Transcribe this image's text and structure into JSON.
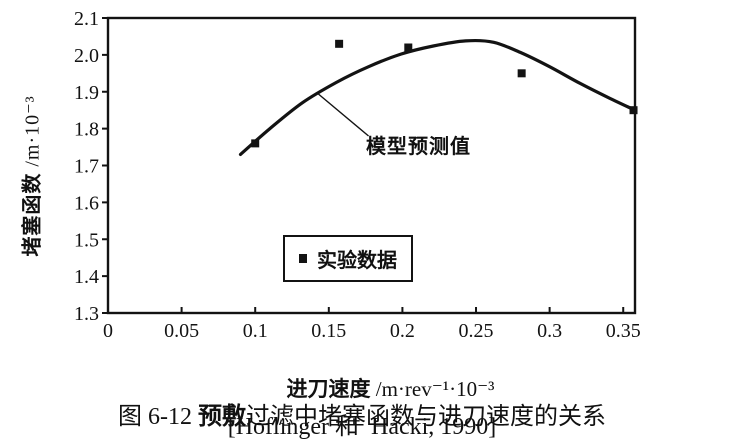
{
  "chart_data": {
    "type": "scatter",
    "title": "",
    "xlabel": "进刀速度 /m·rev⁻¹·10⁻³",
    "xlabel_cjk": "进刀速度",
    "xlabel_unit": " /m·rev⁻¹·10⁻³",
    "ylabel": "堵塞函数 /m·10⁻³",
    "ylabel_cjk": "堵塞函数",
    "ylabel_unit": " /m·10⁻³",
    "xlim": [
      0,
      0.358
    ],
    "ylim": [
      1.3,
      2.1
    ],
    "x_ticks": [
      0,
      0.05,
      0.1,
      0.15,
      0.2,
      0.25,
      0.3,
      0.35
    ],
    "x_tick_labels": [
      "0",
      "0.05",
      "0.1",
      "0.15",
      "0.2",
      "0.25",
      "0.3",
      "0.35"
    ],
    "y_ticks": [
      1.3,
      1.4,
      1.5,
      1.6,
      1.7,
      1.8,
      1.9,
      2.0,
      2.1
    ],
    "y_tick_labels": [
      "1.3",
      "1.4",
      "1.5",
      "1.6",
      "1.7",
      "1.8",
      "1.9",
      "2.0",
      "2.1"
    ],
    "grid": false,
    "legend": {
      "label": "实验数据",
      "marker": "filled-square",
      "boxed": true,
      "position": "inside-lower-center"
    },
    "annotation": {
      "label": "模型预测值",
      "points_to": "model-curve",
      "line_from_xy": [
        0.177,
        1.78
      ],
      "line_to_xy": [
        0.142,
        1.897
      ]
    },
    "series": [
      {
        "name": "实验数据",
        "type": "scatter",
        "marker": "filled-square",
        "color": "#131313",
        "points": [
          [
            0.1,
            1.76
          ],
          [
            0.157,
            2.03
          ],
          [
            0.204,
            2.02
          ],
          [
            0.281,
            1.95
          ],
          [
            0.357,
            1.85
          ]
        ]
      },
      {
        "name": "模型预测值",
        "type": "line",
        "color": "#131313",
        "points": [
          [
            0.09,
            1.73
          ],
          [
            0.11,
            1.8
          ],
          [
            0.132,
            1.87
          ],
          [
            0.155,
            1.925
          ],
          [
            0.177,
            1.968
          ],
          [
            0.199,
            2.002
          ],
          [
            0.221,
            2.024
          ],
          [
            0.243,
            2.038
          ],
          [
            0.262,
            2.034
          ],
          [
            0.281,
            2.005
          ],
          [
            0.3,
            1.968
          ],
          [
            0.321,
            1.922
          ],
          [
            0.341,
            1.882
          ],
          [
            0.358,
            1.85
          ]
        ]
      }
    ]
  },
  "caption": {
    "fig_label": "图 6-12 ",
    "term": "预敷",
    "rest": "过滤中堵塞函数与进刀速度的关系",
    "source": "[Hoflinger 和  Hacki, 1990]"
  },
  "colors": {
    "ink": "#131313",
    "paper": "#ffffff"
  }
}
